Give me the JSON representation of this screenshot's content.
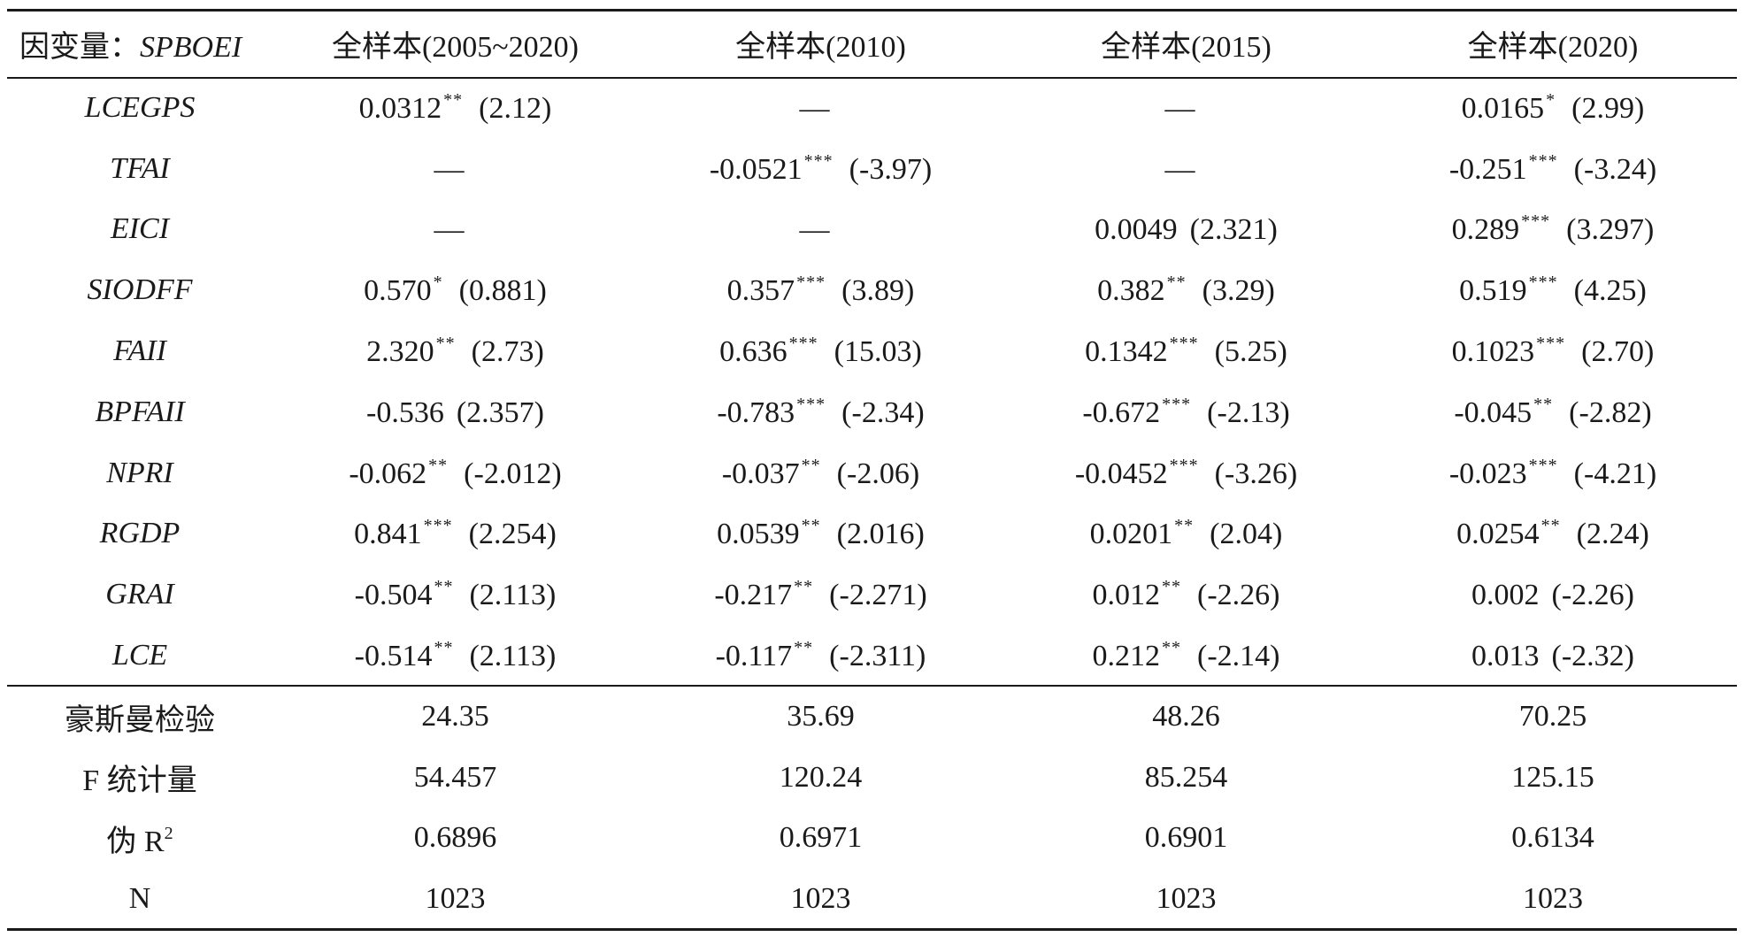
{
  "header": {
    "dep_label": "因变量：",
    "dep_var": "SPBOEI",
    "columns": [
      "全样本(2005~2020)",
      "全样本(2010)",
      "全样本(2015)",
      "全样本(2020)"
    ]
  },
  "rows": [
    {
      "label": "LCEGPS",
      "cells": [
        {
          "coef": "0.0312",
          "stars": "**",
          "t": "(2.12)"
        },
        {
          "coef": "—",
          "stars": "",
          "t": ""
        },
        {
          "coef": "—",
          "stars": "",
          "t": ""
        },
        {
          "coef": "0.0165",
          "stars": "*",
          "t": "(2.99)"
        }
      ]
    },
    {
      "label": "TFAI",
      "cells": [
        {
          "coef": "—",
          "stars": "",
          "t": ""
        },
        {
          "coef": "-0.0521",
          "stars": "***",
          "t": "(-3.97)"
        },
        {
          "coef": "—",
          "stars": "",
          "t": ""
        },
        {
          "coef": "-0.251",
          "stars": "***",
          "t": "(-3.24)"
        }
      ]
    },
    {
      "label": "EICI",
      "cells": [
        {
          "coef": "—",
          "stars": "",
          "t": ""
        },
        {
          "coef": "—",
          "stars": "",
          "t": ""
        },
        {
          "coef": "0.0049",
          "stars": "",
          "t": "(2.321)"
        },
        {
          "coef": "0.289",
          "stars": "***",
          "t": "(3.297)"
        }
      ]
    },
    {
      "label": "SIODFF",
      "cells": [
        {
          "coef": "0.570",
          "stars": "*",
          "t": "(0.881)"
        },
        {
          "coef": "0.357",
          "stars": "***",
          "t": "(3.89)"
        },
        {
          "coef": "0.382",
          "stars": "**",
          "t": "(3.29)"
        },
        {
          "coef": "0.519",
          "stars": "***",
          "t": "(4.25)"
        }
      ]
    },
    {
      "label": "FAII",
      "cells": [
        {
          "coef": "2.320",
          "stars": "**",
          "t": "(2.73)"
        },
        {
          "coef": "0.636",
          "stars": "***",
          "t": "(15.03)"
        },
        {
          "coef": "0.1342",
          "stars": "***",
          "t": "(5.25)"
        },
        {
          "coef": "0.1023",
          "stars": "***",
          "t": "(2.70)"
        }
      ]
    },
    {
      "label": "BPFAII",
      "cells": [
        {
          "coef": "-0.536",
          "stars": "",
          "t": "(2.357)"
        },
        {
          "coef": "-0.783",
          "stars": "***",
          "t": "(-2.34)"
        },
        {
          "coef": "-0.672",
          "stars": "***",
          "t": "(-2.13)"
        },
        {
          "coef": "-0.045",
          "stars": "**",
          "t": "(-2.82)"
        }
      ]
    },
    {
      "label": "NPRI",
      "cells": [
        {
          "coef": "-0.062",
          "stars": "**",
          "t": "(-2.012)"
        },
        {
          "coef": "-0.037",
          "stars": "**",
          "t": "(-2.06)"
        },
        {
          "coef": "-0.0452",
          "stars": "***",
          "t": "(-3.26)"
        },
        {
          "coef": "-0.023",
          "stars": "***",
          "t": "(-4.21)"
        }
      ]
    },
    {
      "label": "RGDP",
      "cells": [
        {
          "coef": "0.841",
          "stars": "***",
          "t": "(2.254)"
        },
        {
          "coef": "0.0539",
          "stars": "**",
          "t": "(2.016)"
        },
        {
          "coef": "0.0201",
          "stars": "**",
          "t": "(2.04)"
        },
        {
          "coef": "0.0254",
          "stars": "**",
          "t": "(2.24)"
        }
      ]
    },
    {
      "label": "GRAI",
      "cells": [
        {
          "coef": "-0.504",
          "stars": "**",
          "t": "(2.113)"
        },
        {
          "coef": "-0.217",
          "stars": "**",
          "t": "(-2.271)"
        },
        {
          "coef": "0.012",
          "stars": "**",
          "t": "(-2.26)"
        },
        {
          "coef": "0.002",
          "stars": "",
          "t": "(-2.26)"
        }
      ]
    },
    {
      "label": "LCE",
      "cells": [
        {
          "coef": "-0.514",
          "stars": "**",
          "t": "(2.113)"
        },
        {
          "coef": "-0.117",
          "stars": "**",
          "t": "(-2.311)"
        },
        {
          "coef": "0.212",
          "stars": "**",
          "t": "(-2.14)"
        },
        {
          "coef": "0.013",
          "stars": "",
          "t": "(-2.32)"
        }
      ]
    }
  ],
  "stats": {
    "hausman": {
      "label": "豪斯曼检验",
      "values": [
        "24.35",
        "35.69",
        "48.26",
        "70.25"
      ]
    },
    "fstat": {
      "label": "F 统计量",
      "values": [
        "54.457",
        "120.24",
        "85.254",
        "125.15"
      ]
    },
    "pseudo_r2": {
      "label": "伪 R",
      "label_sup": "2",
      "values": [
        "0.6896",
        "0.6971",
        "0.6901",
        "0.6134"
      ]
    },
    "n": {
      "label": "N",
      "values": [
        "1023",
        "1023",
        "1023",
        "1023"
      ]
    }
  }
}
